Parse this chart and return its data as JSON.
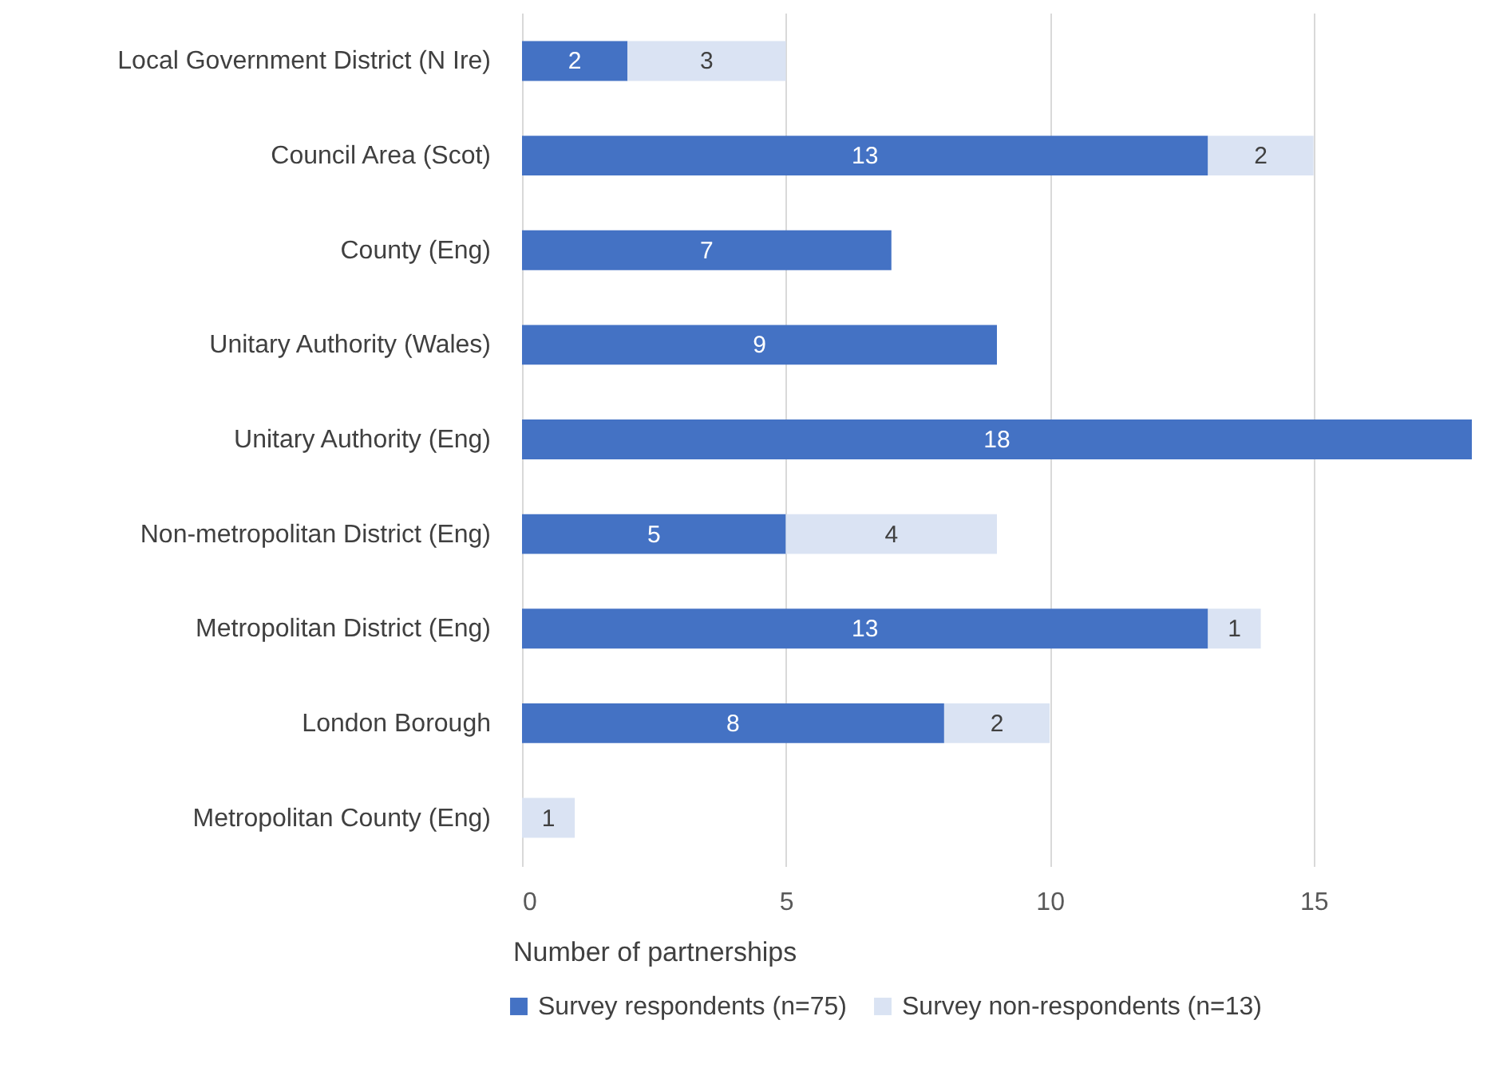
{
  "chart_data": {
    "type": "bar",
    "orientation": "horizontal",
    "stacked": true,
    "xlabel": "Number of partnerships",
    "categories": [
      "Local Government District (N Ire)",
      "Council Area (Scot)",
      "County (Eng)",
      "Unitary Authority (Wales)",
      "Unitary Authority (Eng)",
      "Non-metropolitan District (Eng)",
      "Metropolitan District (Eng)",
      "London Borough",
      "Metropolitan County (Eng)"
    ],
    "series": [
      {
        "name": "Survey respondents (n=75)",
        "color": "#4472c4",
        "values": [
          2,
          13,
          7,
          9,
          18,
          5,
          13,
          8,
          null
        ]
      },
      {
        "name": "Survey non-respondents (n=13)",
        "color": "#dae3f3",
        "values": [
          3,
          2,
          null,
          null,
          null,
          4,
          1,
          2,
          1
        ]
      }
    ],
    "xlim": [
      0,
      18
    ],
    "xticks": [
      0,
      5,
      10,
      15
    ],
    "grid": "x",
    "legend": "bottom",
    "data_labels": true
  }
}
